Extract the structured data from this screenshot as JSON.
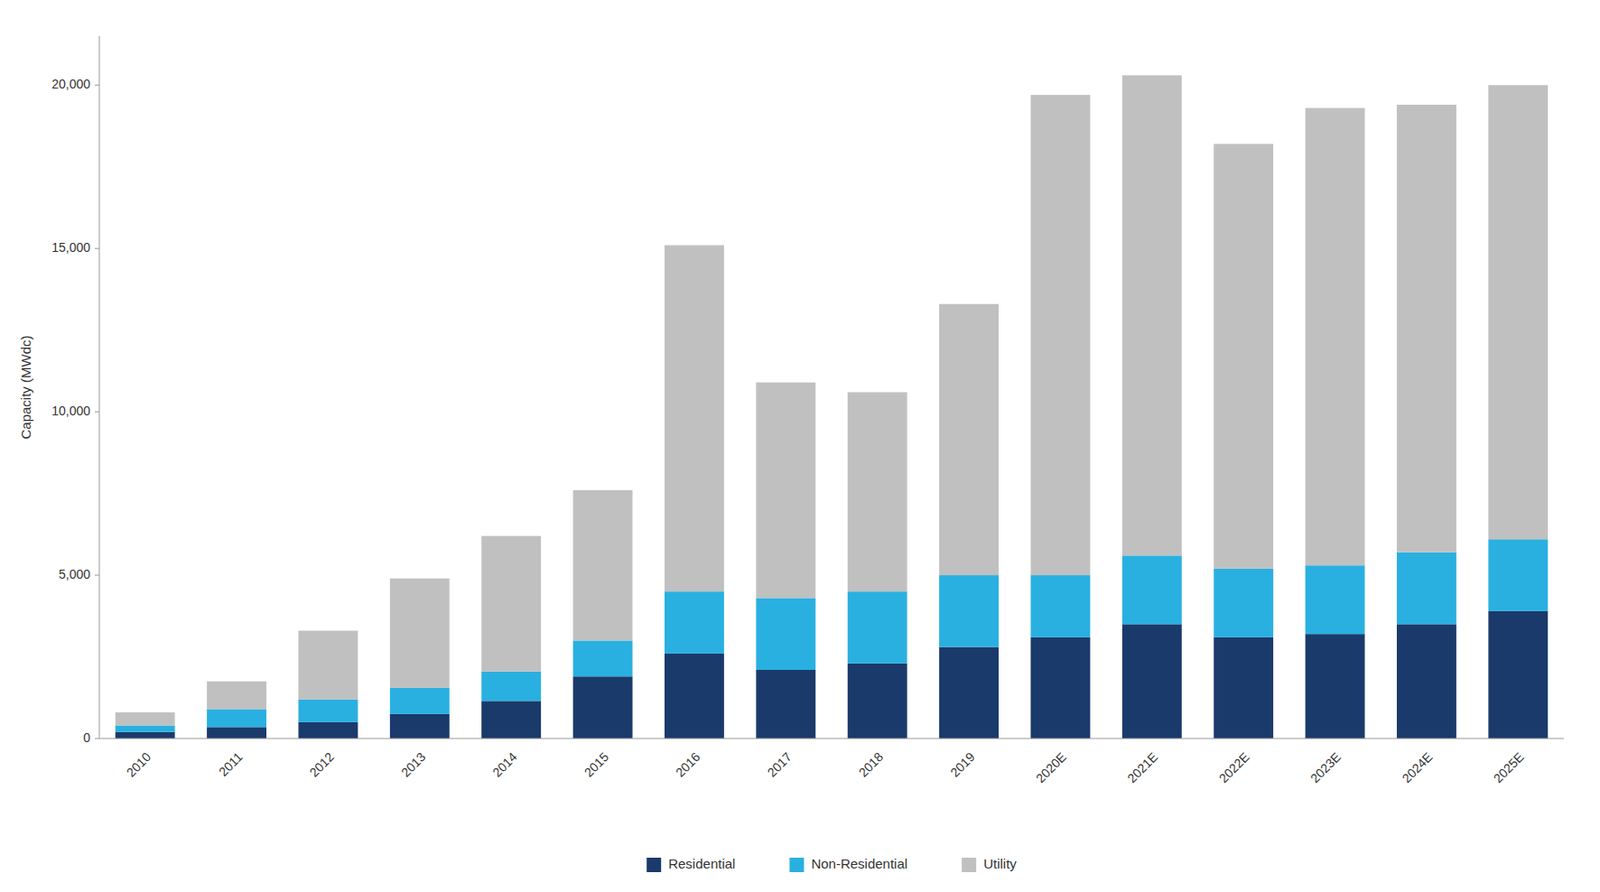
{
  "chart_data": {
    "type": "bar",
    "stacked": true,
    "grid": false,
    "legend": "bottom",
    "y_label": "Capacity (MWdc)",
    "categories": [
      "2010",
      "2011",
      "2012",
      "2013",
      "2014",
      "2015",
      "2016",
      "2017",
      "2018",
      "2019",
      "2020E",
      "2021E",
      "2022E",
      "2023E",
      "2024E",
      "2025E"
    ],
    "series": [
      {
        "name": "Residential",
        "color": "#1a3a6b",
        "values": [
          200,
          350,
          500,
          750,
          1150,
          1900,
          2600,
          2100,
          2300,
          2800,
          3100,
          3500,
          3100,
          3200,
          3500,
          3900
        ]
      },
      {
        "name": "Non-Residential",
        "color": "#29b0e0",
        "values": [
          200,
          550,
          700,
          800,
          900,
          1100,
          1900,
          2200,
          2200,
          2200,
          1900,
          2100,
          2100,
          2100,
          2200,
          2200
        ]
      },
      {
        "name": "Utility",
        "color": "#c0c0c0",
        "values": [
          400,
          850,
          2100,
          3350,
          4150,
          4600,
          10600,
          6600,
          6100,
          8300,
          14700,
          14700,
          13000,
          14000,
          13700,
          13900
        ]
      }
    ],
    "ylim": [
      0,
      21500
    ],
    "yticks": [
      0,
      {
        "value": 5000,
        "label": "5,000"
      },
      {
        "value": 10000,
        "label": "10,000"
      },
      {
        "value": 15000,
        "label": "15,000"
      },
      {
        "value": 20000,
        "label": "20,000"
      }
    ]
  }
}
